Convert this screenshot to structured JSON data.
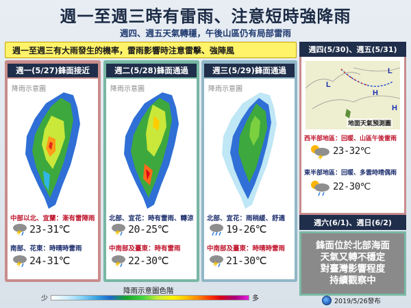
{
  "header": {
    "title": "週一至週三時有雷雨、注意短時強降雨",
    "subtitle": "週四、週五天氣轉穩，午後山區仍有局部雷雨"
  },
  "banner": "週一至週三有大雨發生的機率，雷雨影響時注意雷擊、強陣風",
  "days": [
    {
      "head": "週一(5/27)鋒面接近",
      "map_label": "降雨示意圖",
      "line1": "中部以北、宜蘭：漸有雷陣雨",
      "temp1": "23-31℃",
      "line2": "南部、花東：時晴時雷雨",
      "temp2": "24-31℃",
      "icon1": "cloud-thunder-rain-icon",
      "icon2": "cloud-thunder-rain-icon"
    },
    {
      "head": "週二(5/28)鋒面通過",
      "map_label": "降雨示意圖",
      "line1": "北部、宜花：時有雷雨、轉涼",
      "temp1": "20-25℃",
      "line2": "中南部及臺東：時有雷雨",
      "temp2": "22-30℃",
      "icon1": "cloud-thunder-rain-icon",
      "icon2": "cloud-thunder-rain-icon"
    },
    {
      "head": "週三(5/29)鋒面通過",
      "map_label": "降雨示意圖",
      "line1": "北部、宜花：雨稍緩、舒適",
      "temp1": "19-26℃",
      "line2": "中南部及臺東：時晴時雷雨",
      "temp2": "21-30℃",
      "icon1": "cloud-rain-icon",
      "icon2": "cloud-thunder-rain-icon"
    }
  ],
  "right": {
    "head": "週四(5/30)、週五(5/31)",
    "map_caption": "地面天氣預測圖",
    "west_label": "西半部地區：回暖、山區午後雷雨",
    "west_temp": "23-32℃",
    "east_label": "東半部地區：回暖、多雲時晴偶雨",
    "east_temp": "22-30℃",
    "weekend_head": "週六(6/1)、週日(6/2)",
    "note": [
      "鋒面位於北部海面",
      "天氣又轉不穩定",
      "對臺灣影響程度",
      "持續觀察中"
    ]
  },
  "legend": {
    "title": "降雨示意圖色階",
    "min": "少",
    "max": "多"
  },
  "footer": "2019/5/26發布"
}
